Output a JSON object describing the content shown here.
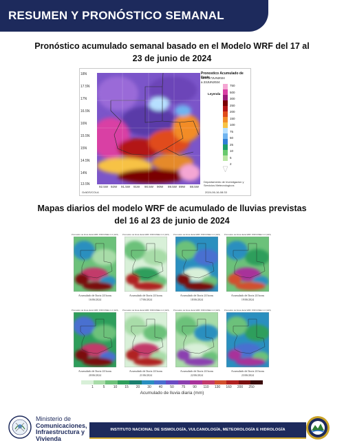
{
  "header": {
    "title": "RESUMEN Y PRONÓSTICO SEMANAL"
  },
  "weekly_section": {
    "heading_line1": "Pronóstico acumulado semanal basado en el Modelo WRF del 17 al",
    "heading_line2": "23 de junio de 2024",
    "map": {
      "title": "Pronostico Acumulado de lluvia",
      "subtitle1": "WRF,17JUN2024",
      "subtitle2": "a 23JUN2024",
      "legend_title": "Leyenda",
      "colorbar_labels": [
        "750",
        "500",
        "300",
        "250",
        "200",
        "150",
        "100",
        "75",
        "50",
        "25",
        "10",
        "5",
        "2"
      ],
      "lat_ticks": [
        "18N",
        "17.5N",
        "17N",
        "16.5N",
        "16N",
        "15.5N",
        "15N",
        "14.5N",
        "14N",
        "13.5N"
      ],
      "lon_ticks": [
        "92.5W",
        "92W",
        "91.5W",
        "91W",
        "90.5W",
        "90W",
        "89.5W",
        "89W",
        "88.5W"
      ],
      "credit": "Departamento de Investigacion y Servicios Meteorologicos",
      "footer_left": "GrADS/COLA",
      "footer_right": "2024-06-16-08:33",
      "colors": [
        "#f4a6d3",
        "#d93fa4",
        "#9b1a7a",
        "#7a0000",
        "#b31515",
        "#e04b1a",
        "#f28c28",
        "#f7c244",
        "#b7e0ff",
        "#6fb4f0",
        "#2e7fd6",
        "#1b9e6a",
        "#69c96e",
        "#b9e6a4",
        "#ffffff"
      ]
    }
  },
  "daily_section": {
    "heading_line1": "Mapas diarios del modelo WRF de acumulado de lluvias previstas",
    "heading_line2": "del 16 al 23 de junio de 2024",
    "panel_title": "Pronostico de lluvia diaria WRF INSIVUMEH 1.0 (GFS, ...)",
    "panels": [
      {
        "caption": "Acumulado de lluvia 24 horas",
        "date": "16/06/2024"
      },
      {
        "caption": "Acumulado de lluvia 24 horas",
        "date": "17/06/2024"
      },
      {
        "caption": "Acumulado de lluvia 24 horas",
        "date": "18/06/2024"
      },
      {
        "caption": "Acumulado de lluvia 24 horas",
        "date": "19/06/2024"
      },
      {
        "caption": "Acumulado de lluvia 24 horas",
        "date": "20/06/2024"
      },
      {
        "caption": "Acumulado de lluvia 24 horas",
        "date": "21/06/2024"
      },
      {
        "caption": "Acumulado de lluvia 24 horas",
        "date": "22/06/2024"
      },
      {
        "caption": "Acumulado de lluvia 24 horas",
        "date": "23/06/2024"
      }
    ],
    "legend_labels": [
      "1",
      "5",
      "10",
      "15",
      "20",
      "30",
      "40",
      "50",
      "75",
      "90",
      "110",
      "130",
      "160",
      "200",
      "250"
    ],
    "legend_colors": [
      "#d8f0d8",
      "#a8dca8",
      "#6cc17a",
      "#2e9e5b",
      "#1a7f6e",
      "#2a8fbf",
      "#4a6fd0",
      "#6a4cc4",
      "#8b3fb0",
      "#a8329a",
      "#c23a6a",
      "#d2502e",
      "#b02020",
      "#7a1010",
      "#3a0a0a"
    ],
    "legend_title": "Acumulado de lluvia diaria (mm)"
  },
  "footer": {
    "ministry_line1": "Ministerio de",
    "ministry_line2": "Comunicaciones,",
    "ministry_line3": "Infraestructura y",
    "ministry_line4": "Vivienda",
    "institute": "INSTITUTO NACIONAL DE SISMOLOGÍA, VULCANOLOGÍA, METEOROLOGÍA E HIDROLOGÍA"
  }
}
